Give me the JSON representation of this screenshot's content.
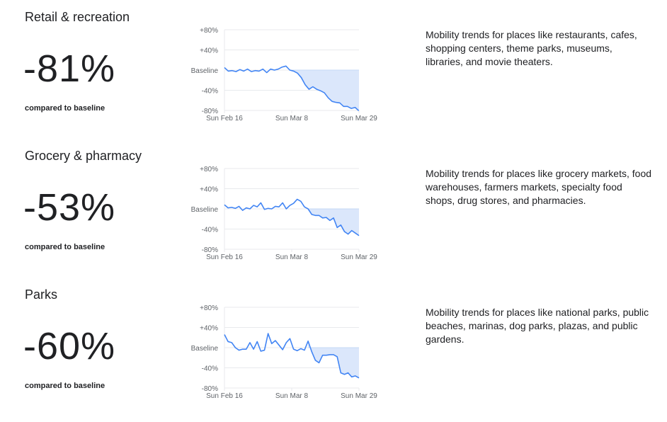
{
  "sections": [
    {
      "title": "Retail & recreation",
      "percent": "-81%",
      "compared": "compared to baseline",
      "description": "Mobility trends for places like restaurants, cafes, shopping centers, theme parks, museums, libraries, and movie theaters."
    },
    {
      "title": "Grocery & pharmacy",
      "percent": "-53%",
      "compared": "compared to baseline",
      "description": "Mobility trends for places like grocery markets, food warehouses, farmers markets, specialty food shops, drug stores, and pharmacies."
    },
    {
      "title": "Parks",
      "percent": "-60%",
      "compared": "compared to baseline",
      "description": "Mobility trends for places like national parks, public beaches, marinas, dog parks, plazas, and public gardens."
    }
  ],
  "colors": {
    "line": "#4285f4",
    "fill": "#dbe7fb",
    "grid": "#e8eaed",
    "text": "#5f6368"
  },
  "chart_data": [
    {
      "type": "line",
      "y_tick_labels": [
        "+80%",
        "+40%",
        "Baseline",
        "-40%",
        "-80%"
      ],
      "y_ticks": [
        80,
        40,
        0,
        -40,
        -80
      ],
      "ylim": [
        -80,
        80
      ],
      "x_tick_labels": [
        "Sun Feb 16",
        "Sun Mar 8",
        "Sun Mar 29"
      ],
      "x_tick_days": [
        0,
        21,
        42
      ],
      "xlim": [
        0,
        42
      ],
      "values": [
        5,
        -2,
        -1,
        -3,
        1,
        -2,
        2,
        -3,
        -1,
        -2,
        2,
        -5,
        2,
        0,
        2,
        6,
        8,
        0,
        -2,
        -6,
        -15,
        -29,
        -38,
        -33,
        -38,
        -41,
        -45,
        -55,
        -62,
        -64,
        -65,
        -72,
        -72,
        -76,
        -74,
        -81
      ]
    },
    {
      "type": "line",
      "y_tick_labels": [
        "+80%",
        "+40%",
        "Baseline",
        "-40%",
        "-80%"
      ],
      "y_ticks": [
        80,
        40,
        0,
        -40,
        -80
      ],
      "ylim": [
        -80,
        80
      ],
      "x_tick_labels": [
        "Sun Feb 16",
        "Sun Mar 8",
        "Sun Mar 29"
      ],
      "x_tick_days": [
        0,
        21,
        42
      ],
      "xlim": [
        0,
        42
      ],
      "values": [
        8,
        2,
        3,
        1,
        5,
        -3,
        2,
        0,
        7,
        4,
        12,
        -1,
        1,
        0,
        5,
        4,
        12,
        0,
        7,
        11,
        19,
        15,
        4,
        0,
        -11,
        -13,
        -13,
        -18,
        -17,
        -23,
        -18,
        -37,
        -32,
        -45,
        -50,
        -43,
        -48,
        -53
      ]
    },
    {
      "type": "line",
      "y_tick_labels": [
        "+80%",
        "+40%",
        "Baseline",
        "-40%",
        "-80%"
      ],
      "y_ticks": [
        80,
        40,
        0,
        -40,
        -80
      ],
      "ylim": [
        -80,
        80
      ],
      "x_tick_labels": [
        "Sun Feb 16",
        "Sun Mar 8",
        "Sun Mar 29"
      ],
      "x_tick_days": [
        0,
        21,
        42
      ],
      "xlim": [
        0,
        42
      ],
      "values": [
        26,
        12,
        10,
        0,
        -5,
        -3,
        -3,
        10,
        -3,
        12,
        -7,
        -5,
        28,
        8,
        14,
        5,
        -4,
        10,
        18,
        -3,
        -6,
        -2,
        -5,
        13,
        -8,
        -25,
        -30,
        -15,
        -15,
        -14,
        -14,
        -18,
        -50,
        -53,
        -50,
        -58,
        -56,
        -60
      ]
    }
  ]
}
